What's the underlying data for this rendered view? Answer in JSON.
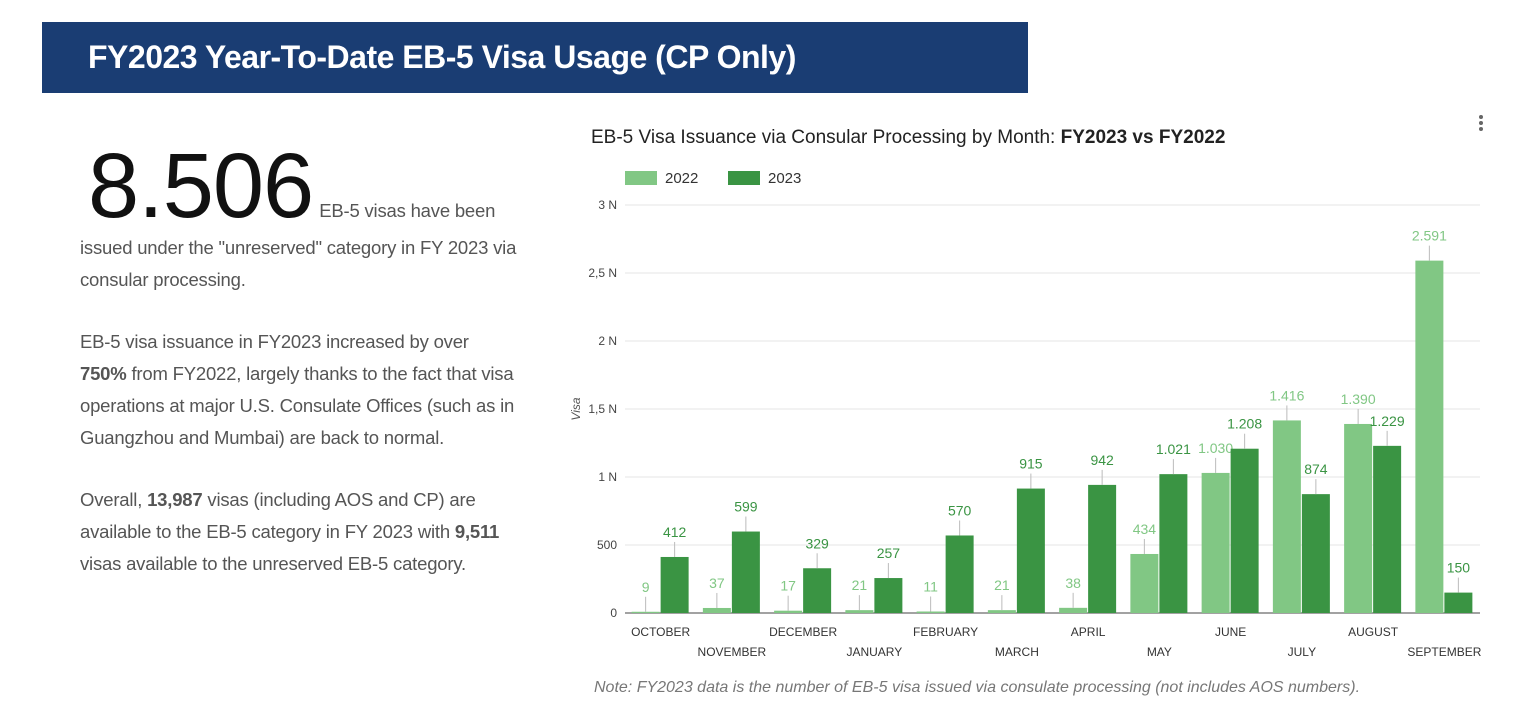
{
  "header": {
    "title": "FY2023 Year-To-Date EB-5 Visa Usage (CP Only)"
  },
  "summary": {
    "big_number": "8.506",
    "text": "EB-5 visas have been issued under the \"unreserved\" category in FY 2023 via consular processing."
  },
  "paragraphs": [
    [
      "EB-5 visa issuance in FY2023 increased by over ",
      "750%",
      " from FY2022, largely thanks to the fact that visa operations at major U.S. Consulate Offices (such as in Guangzhou and Mumbai) are back to normal."
    ],
    [
      "Overall, ",
      "13,987",
      " visas (including AOS and CP) are available to the EB-5 category in FY 2023 with ",
      "9,511",
      " visas available to the unreserved EB-5 category."
    ]
  ],
  "chart_data": {
    "type": "bar",
    "title": "EB-5 Visa Issuance via Consular Processing by Month: ",
    "title_bold": "FY2023 vs FY2022",
    "y_label": "Visa",
    "categories": [
      "OCTOBER",
      "NOVEMBER",
      "DECEMBER",
      "JANUARY",
      "FEBRUARY",
      "MARCH",
      "APRIL",
      "MAY",
      "JUNE",
      "JULY",
      "AUGUST",
      "SEPTEMBER"
    ],
    "series": [
      {
        "name": "2022",
        "color": "#81c784",
        "values": [
          9,
          37,
          17,
          21,
          11,
          21,
          38,
          434,
          1030,
          1416,
          1390,
          2591
        ],
        "value_labels": [
          "9",
          "37",
          "17",
          "21",
          "11",
          "21",
          "38",
          "434",
          "1.030",
          "1.416",
          "1.390",
          "2.591"
        ]
      },
      {
        "name": "2023",
        "color": "#3a9443",
        "values": [
          412,
          599,
          329,
          257,
          570,
          915,
          942,
          1021,
          1208,
          874,
          1229,
          150
        ],
        "value_labels": [
          "412",
          "599",
          "329",
          "257",
          "570",
          "915",
          "942",
          "1.021",
          "1.208",
          "874",
          "1.229",
          "150"
        ]
      }
    ],
    "ylim": [
      0,
      3000
    ],
    "yticks": [
      0,
      500,
      {
        "value": 1000,
        "label": "1 N"
      },
      {
        "value": 1500,
        "label": "1,5 N"
      },
      {
        "value": 2000,
        "label": "2 N"
      },
      {
        "value": 2500,
        "label": "2,5 N"
      },
      {
        "value": 3000,
        "label": "3 N"
      }
    ],
    "grid": true,
    "note": "Note: FY2023 data is the number of EB-5 visa issued via consulate processing (not includes AOS numbers)."
  }
}
